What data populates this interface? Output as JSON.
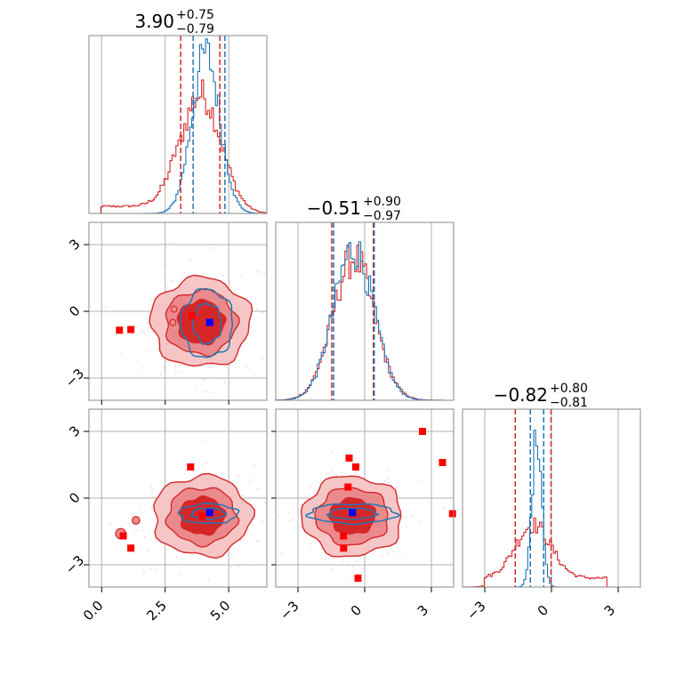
{
  "colors": {
    "red": "#d62728",
    "blue": "#1f77b4",
    "red_fill_outer": "#f6c6c7",
    "red_fill_mid": "#eb8a8c",
    "red_fill_inner": "#d62728",
    "marker_red": "#ff0000",
    "marker_blue": "#0000ff",
    "grid": "#b0b0b0",
    "scatter": "#f2a6c2"
  },
  "chart_data": {
    "type": "corner",
    "grid": true,
    "params": [
      {
        "index": 0,
        "title_main": "3.90",
        "title_plus": "+0.75",
        "title_minus": "−0.79",
        "range": [
          -0.5,
          6.5
        ],
        "ticks": [
          {
            "v": 0.0,
            "label": "0.0"
          },
          {
            "v": 2.5,
            "label": "2.5"
          },
          {
            "v": 5.0,
            "label": "5.0"
          }
        ],
        "red_quantiles": [
          3.11,
          3.9,
          4.65
        ],
        "blue_quantiles": [
          3.6,
          4.85
        ],
        "red_hist": {
          "mean": 3.9,
          "sd": 0.8,
          "tail": 0.04,
          "tail_range": [
            0.0,
            3.0
          ],
          "peak": 0.67
        },
        "blue_hist": {
          "mean": 4.1,
          "sd": 0.55,
          "peak": 0.9
        }
      },
      {
        "index": 1,
        "title_main": "−0.51",
        "title_plus": "+0.90",
        "title_minus": "−0.97",
        "range": [
          -4.0,
          4.0
        ],
        "ticks": [
          {
            "v": -3,
            "label": "−3"
          },
          {
            "v": 0,
            "label": "0"
          },
          {
            "v": 3,
            "label": "3"
          }
        ],
        "red_quantiles": [
          -1.48,
          -0.51,
          0.39
        ],
        "blue_quantiles": [
          -1.4,
          0.43
        ],
        "red_hist": {
          "mean": -0.5,
          "sd": 0.93,
          "tail": 0.0,
          "tail_range": [
            0,
            0
          ],
          "peak": 0.8
        },
        "blue_hist": {
          "mean": -0.5,
          "sd": 0.9,
          "peak": 0.85
        }
      },
      {
        "index": 2,
        "title_main": "−0.82",
        "title_plus": "+0.80",
        "title_minus": "−0.81",
        "range": [
          -4.0,
          4.0
        ],
        "ticks": [
          {
            "v": -3,
            "label": "−3"
          },
          {
            "v": 0,
            "label": "0"
          },
          {
            "v": 3,
            "label": "3"
          }
        ],
        "red_quantiles": [
          -1.63,
          -0.82,
          -0.02
        ],
        "blue_quantiles": [
          -0.95,
          -0.35
        ],
        "red_hist": {
          "mean": -0.82,
          "sd": 0.8,
          "tail": 0.05,
          "tail_range": [
            -3.0,
            2.5
          ],
          "peak": 0.3
        },
        "blue_hist": {
          "mean": -0.65,
          "sd": 0.22,
          "peak": 0.88
        }
      }
    ],
    "contours": [
      {
        "row": 1,
        "col": 0,
        "red": {
          "cx": 3.9,
          "cy": -0.5,
          "sx": 0.8,
          "sy": 0.93,
          "levels": [
            [
              1.15,
              1.05
            ],
            [
              1.75,
              1.55
            ],
            [
              2.45,
              2.15
            ]
          ]
        },
        "red_islands": [
          {
            "x": 2.85,
            "y": 0.1,
            "r": 0.12
          },
          {
            "x": 2.8,
            "y": -0.5,
            "r": 0.12
          }
        ],
        "blue": {
          "cx": 4.15,
          "cy": -0.55,
          "sx": 0.55,
          "sy": 0.9,
          "levels": [
            [
              1.0,
              1.0
            ],
            [
              1.85,
              1.7
            ]
          ]
        },
        "markers_red": [
          [
            0.7,
            -0.85
          ],
          [
            1.15,
            -0.82
          ],
          [
            3.55,
            -0.2
          ]
        ],
        "marker_blue": [
          4.25,
          -0.5
        ]
      },
      {
        "row": 2,
        "col": 0,
        "red": {
          "cx": 3.95,
          "cy": -0.8,
          "sx": 0.8,
          "sy": 0.8,
          "levels": [
            [
              1.1,
              1.05
            ],
            [
              1.7,
              1.6
            ],
            [
              2.4,
              2.25
            ]
          ]
        },
        "red_islands": [
          {
            "x": 1.35,
            "y": -1.0,
            "r": 0.15
          },
          {
            "x": 0.75,
            "y": -1.6,
            "r": 0.2
          }
        ],
        "blue": {
          "cx": 4.2,
          "cy": -0.7,
          "sx": 0.55,
          "sy": 0.22,
          "levels": [
            [
              1.2,
              1.1
            ],
            [
              2.1,
              2.0
            ]
          ]
        },
        "markers_red": [
          [
            3.5,
            1.4
          ],
          [
            0.85,
            -1.7
          ],
          [
            1.15,
            -2.25
          ],
          [
            3.95,
            -0.8
          ]
        ],
        "marker_blue": [
          4.25,
          -0.65
        ]
      },
      {
        "row": 2,
        "col": 1,
        "red": {
          "cx": -0.55,
          "cy": -0.82,
          "sx": 0.93,
          "sy": 0.8,
          "levels": [
            [
              1.1,
              1.0
            ],
            [
              1.75,
              1.6
            ],
            [
              2.4,
              2.25
            ]
          ]
        },
        "red_islands": [],
        "blue": {
          "cx": -0.55,
          "cy": -0.7,
          "sx": 0.9,
          "sy": 0.22,
          "levels": [
            [
              1.2,
              1.1
            ],
            [
              2.2,
              2.0
            ]
          ]
        },
        "markers_red": [
          [
            2.6,
            3.0
          ],
          [
            -0.7,
            1.8
          ],
          [
            -0.4,
            1.4
          ],
          [
            3.5,
            1.6
          ],
          [
            -0.75,
            0.5
          ],
          [
            3.95,
            -0.7
          ],
          [
            -0.95,
            -1.7
          ],
          [
            -0.95,
            -2.25
          ],
          [
            -0.3,
            -3.6
          ]
        ],
        "marker_blue": [
          -0.55,
          -0.65
        ]
      }
    ]
  }
}
